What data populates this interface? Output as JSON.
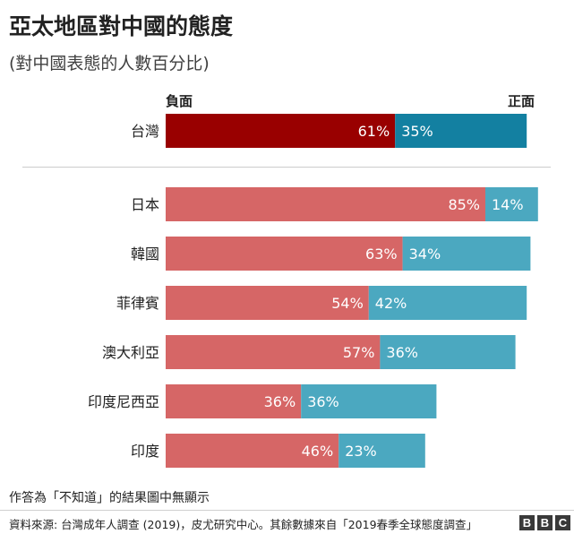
{
  "chart_data": {
    "type": "bar",
    "orientation": "horizontal",
    "stacked": true,
    "title": "亞太地區對中國的態度",
    "subtitle": "(對中國表態的人數百分比)",
    "axis_labels": {
      "left": "負面",
      "right": "正面"
    },
    "categories": [
      "台灣",
      "日本",
      "韓國",
      "菲律賓",
      "澳大利亞",
      "印度尼西亞",
      "印度"
    ],
    "series": [
      {
        "name": "負面",
        "values": [
          61,
          85,
          63,
          54,
          57,
          36,
          46
        ]
      },
      {
        "name": "正面",
        "values": [
          35,
          14,
          34,
          42,
          36,
          36,
          23
        ]
      }
    ],
    "value_suffix": "%",
    "xlim": [
      0,
      100
    ],
    "highlight_category": "台灣",
    "colors": {
      "negative": "#d66666",
      "positive": "#4ba8c0",
      "negative_highlight": "#990000",
      "positive_highlight": "#1380a1"
    }
  },
  "note": "作答為「不知道」的結果圖中無顯示",
  "source": "資料來源: 台灣成年人調查 (2019)，皮尤研究中心。其餘數據來自「2019春季全球態度調查」",
  "logo": [
    "B",
    "B",
    "C"
  ]
}
